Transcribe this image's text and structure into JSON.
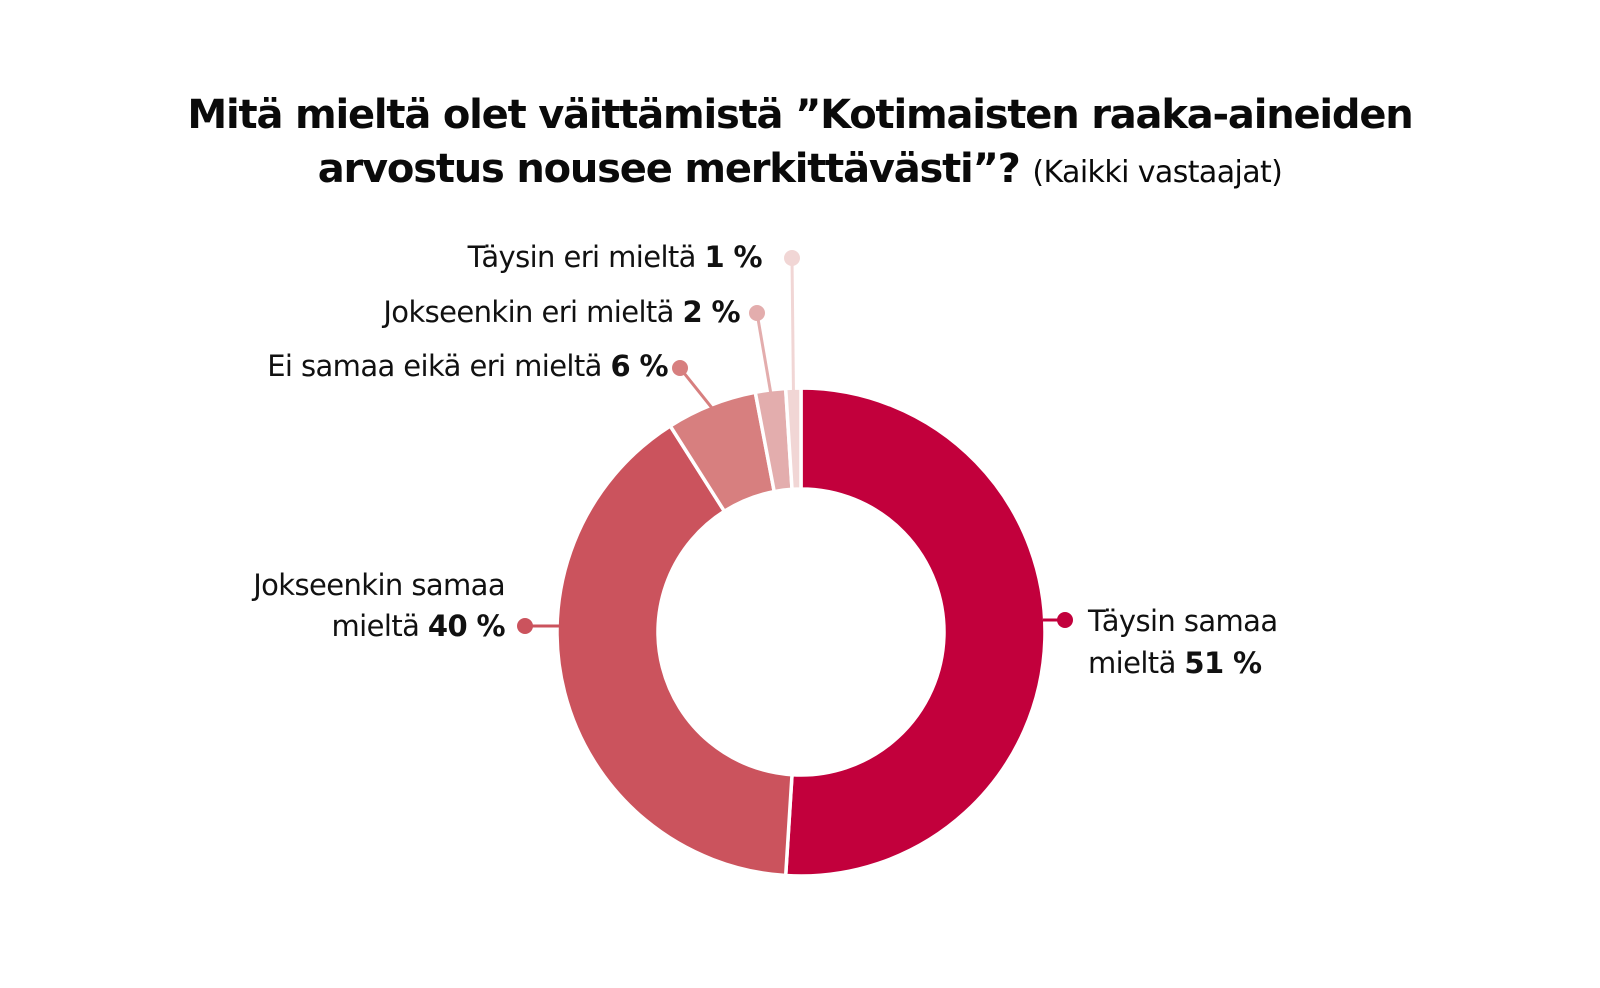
{
  "chart_data": {
    "type": "pie",
    "variant": "donut",
    "title": "Mitä mieltä olet väittämistä ”Kotimaisten raaka-aineiden arvostus nousee merkittävästi”?",
    "title_line1": "Mitä mieltä olet väittämistä ”Kotimaisten raaka-aineiden",
    "title_line2": "arvostus nousee merkittävästi”?",
    "subtitle": "(Kaikki vastaajat)",
    "unit": "%",
    "slices": [
      {
        "label": "Täysin samaa mieltä",
        "label_line1": "Täysin samaa",
        "label_line2": "mieltä",
        "value": 51,
        "value_text": "51 %",
        "color": "#c2003c"
      },
      {
        "label": "Jokseenkin samaa mieltä",
        "label_line1": "Jokseenkin samaa",
        "label_line2": "mieltä",
        "value": 40,
        "value_text": "40 %",
        "color": "#cb535d"
      },
      {
        "label": "Ei samaa eikä eri mieltä",
        "label_line1": "Ei samaa eikä eri mieltä",
        "value": 6,
        "value_text": "6 %",
        "color": "#d77f7f"
      },
      {
        "label": "Jokseenkin eri mieltä",
        "label_line1": "Jokseenkin eri mieltä",
        "value": 2,
        "value_text": "2 %",
        "color": "#e3adad"
      },
      {
        "label": "Täysin eri mieltä",
        "label_line1": "Täysin eri mieltä",
        "value": 1,
        "value_text": "1 %",
        "color": "#f1d6d5"
      }
    ],
    "start": "top",
    "direction": "clockwise"
  }
}
